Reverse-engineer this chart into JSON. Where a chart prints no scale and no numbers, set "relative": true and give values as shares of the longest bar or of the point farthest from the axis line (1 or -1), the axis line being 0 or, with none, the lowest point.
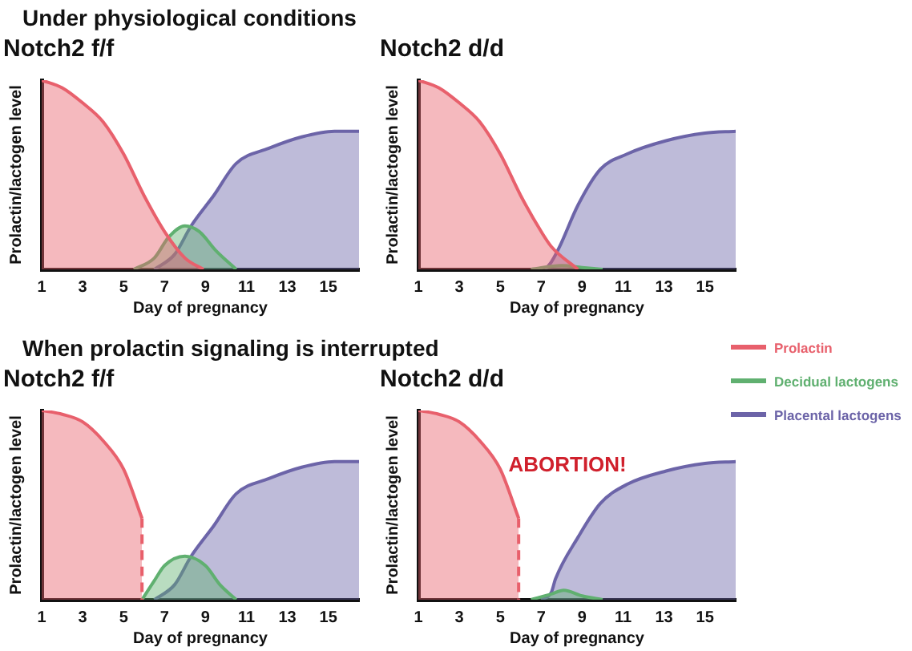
{
  "chart_data": [
    {
      "type": "area",
      "title": "Notch2 f/f",
      "annotations": [
        "Under physiological conditions"
      ],
      "xlabel": "Day of pregnancy",
      "ylabel": "Prolactin/lactogen level",
      "relative": true,
      "xlim": [
        1,
        16.5
      ],
      "xticks": [
        1,
        3,
        5,
        7,
        9,
        11,
        13,
        15
      ],
      "series": [
        {
          "color": "#e8606c",
          "x": [
            1,
            2,
            3,
            4,
            5,
            6,
            7,
            8,
            8.9
          ],
          "values": [
            1,
            0.96,
            0.88,
            0.78,
            0.61,
            0.39,
            0.2,
            0.06,
            0
          ]
        },
        {
          "color": "#60b070",
          "x": [
            5.5,
            6.5,
            7.2,
            8,
            8.7,
            9.5,
            10.5
          ],
          "values": [
            0,
            0.06,
            0.17,
            0.23,
            0.2,
            0.1,
            0
          ]
        },
        {
          "color": "#6c64a8",
          "x": [
            6.5,
            7.5,
            8.3,
            9.4,
            10.5,
            12.1,
            13.7,
            15.3,
            16.5
          ],
          "values": [
            0,
            0.08,
            0.23,
            0.39,
            0.56,
            0.64,
            0.7,
            0.73,
            0.73
          ]
        }
      ]
    },
    {
      "type": "area",
      "title": "Notch2 d/d",
      "xlabel": "Day of pregnancy",
      "ylabel": "Prolactin/lactogen level",
      "relative": true,
      "xlim": [
        1,
        16.5
      ],
      "xticks": [
        1,
        3,
        5,
        7,
        9,
        11,
        13,
        15
      ],
      "series": [
        {
          "color": "#e8606c",
          "x": [
            1,
            2,
            3,
            4,
            5,
            6,
            7,
            7.5,
            8.8
          ],
          "values": [
            1,
            0.96,
            0.88,
            0.78,
            0.61,
            0.39,
            0.2,
            0.12,
            0
          ]
        },
        {
          "color": "#60b070",
          "x": [
            6.5,
            8,
            9,
            10
          ],
          "values": [
            0,
            0.02,
            0.01,
            0
          ]
        },
        {
          "color": "#6c64a8",
          "x": [
            7.2,
            7.5,
            7.9,
            8.8,
            9.9,
            11.2,
            13.1,
            15,
            16.5
          ],
          "values": [
            0,
            0.04,
            0.12,
            0.34,
            0.53,
            0.61,
            0.68,
            0.72,
            0.73
          ]
        }
      ]
    },
    {
      "type": "area",
      "title": "Notch2 f/f",
      "annotations": [
        "When prolactin signaling is interrupted"
      ],
      "xlabel": "Day of pregnancy",
      "ylabel": "Prolactin/lactogen level",
      "relative": true,
      "xlim": [
        1,
        16.5
      ],
      "xticks": [
        1,
        3,
        5,
        7,
        9,
        11,
        13,
        15
      ],
      "series": [
        {
          "color": "#e8606c",
          "x": [
            1,
            2,
            3,
            4,
            5,
            5.9
          ],
          "values": [
            1,
            0.98,
            0.94,
            0.84,
            0.69,
            0.43
          ]
        },
        {
          "type": "line",
          "line_style": "dashed",
          "color": "#e8606c",
          "x": [
            5.9,
            5.9
          ],
          "values": [
            0.43,
            0
          ]
        },
        {
          "color": "#60b070",
          "x": [
            5.9,
            6.5,
            7,
            8,
            9,
            9.7,
            10.5
          ],
          "values": [
            0,
            0.1,
            0.18,
            0.23,
            0.18,
            0.08,
            0
          ]
        },
        {
          "color": "#6c64a8",
          "x": [
            6.5,
            7.5,
            8.3,
            9.4,
            10.5,
            12.1,
            13.7,
            15.3,
            16.5
          ],
          "values": [
            0,
            0.08,
            0.23,
            0.39,
            0.56,
            0.64,
            0.7,
            0.73,
            0.73
          ]
        }
      ]
    },
    {
      "type": "area",
      "title": "Notch2 d/d",
      "annotations": [
        "ABORTION!"
      ],
      "xlabel": "Day of pregnancy",
      "ylabel": "Prolactin/lactogen level",
      "relative": true,
      "xlim": [
        1,
        16.5
      ],
      "xticks": [
        1,
        3,
        5,
        7,
        9,
        11,
        13,
        15
      ],
      "legend": "top right",
      "series": [
        {
          "name": "Prolactin",
          "color": "#e8606c",
          "x": [
            1,
            2,
            3,
            4,
            5,
            5.9
          ],
          "values": [
            1,
            0.98,
            0.94,
            0.84,
            0.69,
            0.43
          ]
        },
        {
          "type": "line",
          "line_style": "dashed",
          "color": "#e8606c",
          "x": [
            5.9,
            5.9
          ],
          "values": [
            0.43,
            0
          ]
        },
        {
          "name": "Decidual lactogens",
          "color": "#60b070",
          "x": [
            6.5,
            7.5,
            8.1,
            9,
            10
          ],
          "values": [
            0,
            0.03,
            0.05,
            0.02,
            0
          ]
        },
        {
          "name": "Placental lactogens",
          "color": "#6c64a8",
          "x": [
            7,
            7.5,
            7.7,
            8.8,
            9.9,
            11.2,
            13.1,
            15,
            16.5
          ],
          "values": [
            0,
            0.04,
            0.11,
            0.33,
            0.51,
            0.61,
            0.68,
            0.72,
            0.73
          ]
        }
      ]
    }
  ]
}
